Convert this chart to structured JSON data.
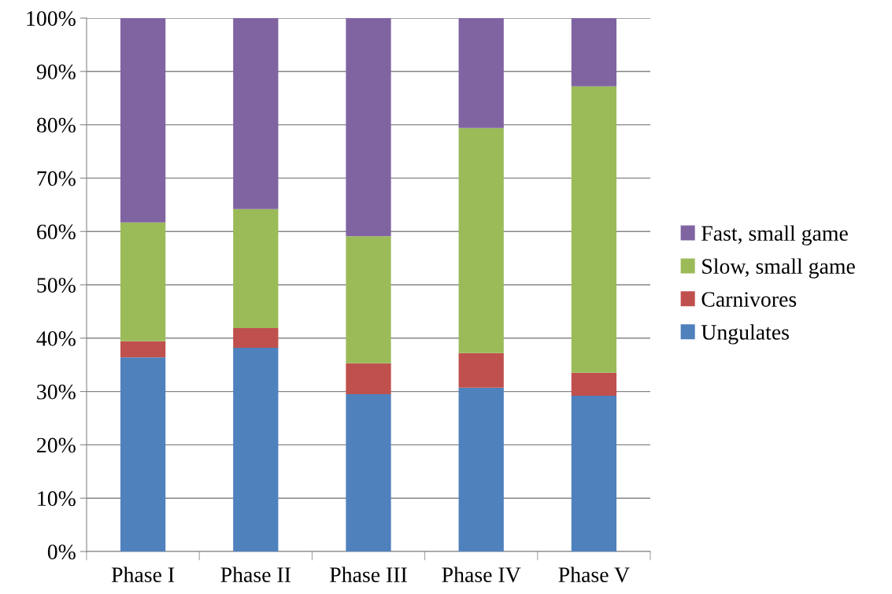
{
  "chart_data": {
    "type": "bar",
    "stacked": true,
    "categories": [
      "Phase I",
      "Phase II",
      "Phase III",
      "Phase IV",
      "Phase V"
    ],
    "series": [
      {
        "name": "Ungulates",
        "color": "#4f81bd",
        "values": [
          36.4,
          38.2,
          29.5,
          30.7,
          29.2
        ]
      },
      {
        "name": "Carnivores",
        "color": "#c0504d",
        "values": [
          3.0,
          3.7,
          5.8,
          6.5,
          4.3
        ]
      },
      {
        "name": "Slow, small game",
        "color": "#9bbb59",
        "values": [
          22.3,
          22.3,
          23.8,
          42.2,
          53.7
        ]
      },
      {
        "name": "Fast, small game",
        "color": "#8064a2",
        "values": [
          38.3,
          35.8,
          40.9,
          20.6,
          12.8
        ]
      }
    ],
    "ylim": [
      0,
      100
    ],
    "yticks": [
      {
        "value": 0,
        "label": "0%"
      },
      {
        "value": 10,
        "label": "10%"
      },
      {
        "value": 20,
        "label": "20%"
      },
      {
        "value": 30,
        "label": "30%"
      },
      {
        "value": 40,
        "label": "40%"
      },
      {
        "value": 50,
        "label": "50%"
      },
      {
        "value": 60,
        "label": "60%"
      },
      {
        "value": 70,
        "label": "70%"
      },
      {
        "value": 80,
        "label": "80%"
      },
      {
        "value": 90,
        "label": "90%"
      },
      {
        "value": 100,
        "label": "100%"
      }
    ],
    "grid": "y",
    "legend": "right"
  }
}
